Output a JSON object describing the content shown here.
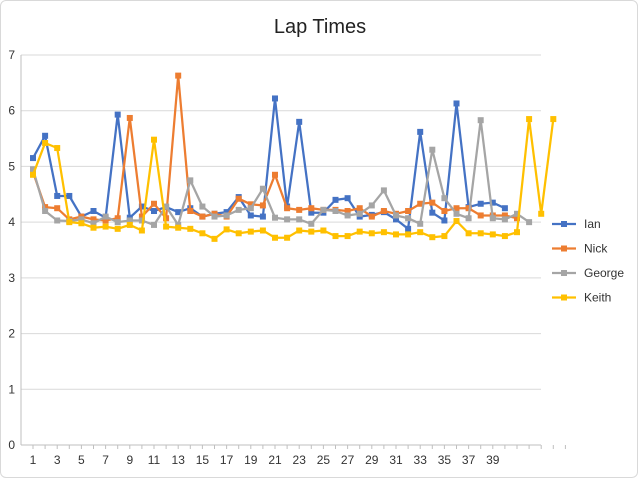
{
  "chart_data": {
    "type": "line",
    "title": "Lap Times",
    "xlabel": "",
    "ylabel": "",
    "ylim": [
      0,
      7
    ],
    "yticks": [
      0,
      1,
      2,
      3,
      4,
      5,
      6,
      7
    ],
    "x_count": 45,
    "x_tick_labels": [
      "1",
      "3",
      "5",
      "7",
      "9",
      "11",
      "13",
      "15",
      "17",
      "19",
      "21",
      "23",
      "25",
      "27",
      "29",
      "31",
      "33",
      "35",
      "37",
      "39"
    ],
    "grid": "horizontal",
    "legend_position": "right",
    "series": [
      {
        "name": "Ian",
        "color": "#4472C4",
        "marker": "square",
        "values": [
          5.15,
          5.55,
          4.47,
          4.47,
          4.1,
          4.2,
          4.08,
          5.93,
          4.08,
          4.28,
          4.2,
          4.27,
          4.18,
          4.25,
          4.1,
          4.15,
          4.18,
          4.45,
          4.12,
          4.1,
          6.22,
          4.28,
          5.8,
          4.17,
          4.17,
          4.4,
          4.43,
          4.1,
          4.13,
          4.18,
          4.05,
          3.88,
          5.62,
          4.17,
          4.03,
          6.13,
          4.27,
          4.33,
          4.35,
          4.25
        ]
      },
      {
        "name": "Nick",
        "color": "#ED7D31",
        "marker": "square",
        "values": [
          4.9,
          4.27,
          4.25,
          4.05,
          4.1,
          4.05,
          4.03,
          4.07,
          5.87,
          4.1,
          4.33,
          4.07,
          6.63,
          4.2,
          4.1,
          4.15,
          4.1,
          4.42,
          4.32,
          4.3,
          4.85,
          4.25,
          4.22,
          4.25,
          4.22,
          4.22,
          4.2,
          4.25,
          4.1,
          4.2,
          4.15,
          4.2,
          4.33,
          4.35,
          4.2,
          4.25,
          4.25,
          4.12,
          4.12,
          4.12,
          4.07
        ]
      },
      {
        "name": "George",
        "color": "#A5A5A5",
        "marker": "square",
        "values": [
          4.95,
          4.2,
          4.03,
          4.02,
          4.05,
          3.98,
          4.1,
          4.0,
          4.03,
          4.03,
          3.95,
          4.28,
          3.95,
          4.75,
          4.28,
          4.1,
          4.12,
          4.22,
          4.25,
          4.6,
          4.08,
          4.05,
          4.05,
          3.97,
          4.22,
          4.2,
          4.12,
          4.15,
          4.3,
          4.57,
          4.12,
          4.07,
          3.97,
          5.3,
          4.43,
          4.15,
          4.07,
          5.83,
          4.07,
          4.05,
          4.15,
          4.0
        ]
      },
      {
        "name": "Keith",
        "color": "#FFC000",
        "marker": "square",
        "values": [
          4.85,
          5.42,
          5.33,
          4.0,
          3.98,
          3.9,
          3.92,
          3.88,
          3.95,
          3.85,
          5.48,
          3.92,
          3.9,
          3.88,
          3.8,
          3.7,
          3.87,
          3.8,
          3.83,
          3.85,
          3.72,
          3.72,
          3.85,
          3.83,
          3.85,
          3.75,
          3.75,
          3.83,
          3.8,
          3.82,
          3.78,
          3.78,
          3.82,
          3.73,
          3.75,
          4.02,
          3.8,
          3.8,
          3.78,
          3.75,
          3.82,
          5.85,
          4.15,
          5.85
        ]
      }
    ]
  }
}
